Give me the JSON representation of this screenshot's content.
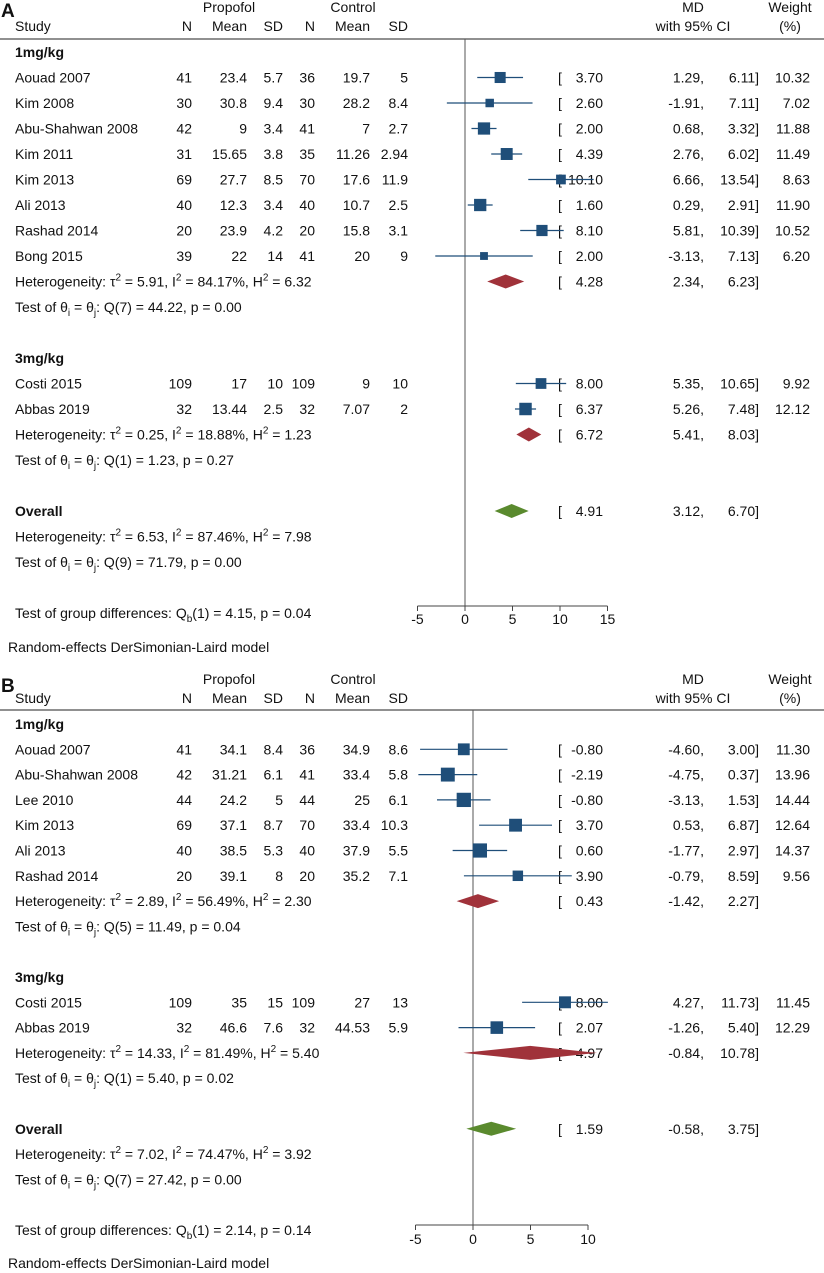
{
  "chart_data": [
    {
      "type": "forest",
      "panel": "A",
      "headers": {
        "study": "Study",
        "group1": "Propofol",
        "group2": "Control",
        "n": "N",
        "mean": "Mean",
        "sd": "SD",
        "effect_top": "MD",
        "effect_bottom": "with 95% CI",
        "weight_top": "Weight",
        "weight_bottom": "(%)"
      },
      "rows": [
        {
          "kind": "group",
          "label": "1mg/kg"
        },
        {
          "kind": "study",
          "label": "Aouad 2007",
          "n1": "41",
          "m1": "23.4",
          "sd1": "5.7",
          "n2": "36",
          "m2": "19.7",
          "sd2": "5",
          "md": 3.7,
          "lo": 1.29,
          "hi": 6.11,
          "md_t": "3.70",
          "lo_t": "1.29,",
          "hi_t": "6.11]",
          "weight": "10.32"
        },
        {
          "kind": "study",
          "label": "Kim 2008",
          "n1": "30",
          "m1": "30.8",
          "sd1": "9.4",
          "n2": "30",
          "m2": "28.2",
          "sd2": "8.4",
          "md": 2.6,
          "lo": -1.91,
          "hi": 7.11,
          "md_t": "2.60",
          "lo_t": "-1.91,",
          "hi_t": "7.11]",
          "weight": "7.02"
        },
        {
          "kind": "study",
          "label": "Abu-Shahwan 2008",
          "n1": "42",
          "m1": "9",
          "sd1": "3.4",
          "n2": "41",
          "m2": "7",
          "sd2": "2.7",
          "md": 2.0,
          "lo": 0.68,
          "hi": 3.32,
          "md_t": "2.00",
          "lo_t": "0.68,",
          "hi_t": "3.32]",
          "weight": "11.88"
        },
        {
          "kind": "study",
          "label": "Kim 2011",
          "n1": "31",
          "m1": "15.65",
          "sd1": "3.8",
          "n2": "35",
          "m2": "11.26",
          "sd2": "2.94",
          "md": 4.39,
          "lo": 2.76,
          "hi": 6.02,
          "md_t": "4.39",
          "lo_t": "2.76,",
          "hi_t": "6.02]",
          "weight": "11.49"
        },
        {
          "kind": "study",
          "label": "Kim 2013",
          "n1": "69",
          "m1": "27.7",
          "sd1": "8.5",
          "n2": "70",
          "m2": "17.6",
          "sd2": "11.9",
          "md": 10.1,
          "lo": 6.66,
          "hi": 13.54,
          "md_t": "10.10",
          "lo_t": "6.66,",
          "hi_t": "13.54]",
          "weight": "8.63"
        },
        {
          "kind": "study",
          "label": "Ali 2013",
          "n1": "40",
          "m1": "12.3",
          "sd1": "3.4",
          "n2": "40",
          "m2": "10.7",
          "sd2": "2.5",
          "md": 1.6,
          "lo": 0.29,
          "hi": 2.91,
          "md_t": "1.60",
          "lo_t": "0.29,",
          "hi_t": "2.91]",
          "weight": "11.90"
        },
        {
          "kind": "study",
          "label": "Rashad 2014",
          "n1": "20",
          "m1": "23.9",
          "sd1": "4.2",
          "n2": "20",
          "m2": "15.8",
          "sd2": "3.1",
          "md": 8.1,
          "lo": 5.81,
          "hi": 10.39,
          "md_t": "8.10",
          "lo_t": "5.81,",
          "hi_t": "10.39]",
          "weight": "10.52"
        },
        {
          "kind": "study",
          "label": "Bong 2015",
          "n1": "39",
          "m1": "22",
          "sd1": "14",
          "n2": "41",
          "m2": "20",
          "sd2": "9",
          "md": 2.0,
          "lo": -3.13,
          "hi": 7.13,
          "md_t": "2.00",
          "lo_t": "-3.13,",
          "hi_t": "7.13]",
          "weight": "6.20"
        },
        {
          "kind": "subtotal",
          "label": "Heterogeneity: τ² = 5.91, I² = 84.17%, H² = 6.32",
          "md": 4.28,
          "lo": 2.34,
          "hi": 6.23,
          "md_t": "4.28",
          "lo_t": "2.34,",
          "hi_t": "6.23]"
        },
        {
          "kind": "test",
          "label": "Test of θᵢ = θⱼ: Q(7) = 44.22, p = 0.00"
        },
        {
          "kind": "blank"
        },
        {
          "kind": "group",
          "label": "3mg/kg"
        },
        {
          "kind": "study",
          "label": "Costi 2015",
          "n1": "109",
          "m1": "17",
          "sd1": "10",
          "n2": "109",
          "m2": "9",
          "sd2": "10",
          "md": 8.0,
          "lo": 5.35,
          "hi": 10.65,
          "md_t": "8.00",
          "lo_t": "5.35,",
          "hi_t": "10.65]",
          "weight": "9.92"
        },
        {
          "kind": "study",
          "label": "Abbas 2019",
          "n1": "32",
          "m1": "13.44",
          "sd1": "2.5",
          "n2": "32",
          "m2": "7.07",
          "sd2": "2",
          "md": 6.37,
          "lo": 5.26,
          "hi": 7.48,
          "md_t": "6.37",
          "lo_t": "5.26,",
          "hi_t": "7.48]",
          "weight": "12.12"
        },
        {
          "kind": "subtotal",
          "label": "Heterogeneity: τ² = 0.25, I² = 18.88%, H² = 1.23",
          "md": 6.72,
          "lo": 5.41,
          "hi": 8.03,
          "md_t": "6.72",
          "lo_t": "5.41,",
          "hi_t": "8.03]"
        },
        {
          "kind": "test",
          "label": "Test of θᵢ = θⱼ: Q(1) = 1.23, p = 0.27"
        },
        {
          "kind": "blank"
        },
        {
          "kind": "overall",
          "label": "Overall",
          "md": 4.91,
          "lo": 3.12,
          "hi": 6.7,
          "md_t": "4.91",
          "lo_t": "3.12,",
          "hi_t": "6.70]"
        },
        {
          "kind": "test",
          "label": "Heterogeneity: τ² = 6.53, I² = 87.46%, H² = 7.98"
        },
        {
          "kind": "test",
          "label": "Test of θᵢ = θⱼ: Q(9) = 71.79, p = 0.00"
        },
        {
          "kind": "blank"
        },
        {
          "kind": "test",
          "label": "Test of group differences: Q_b(1) = 4.15, p = 0.04"
        }
      ],
      "x_ticks": [
        -5,
        0,
        5,
        10,
        15
      ],
      "xlim": [
        -5,
        15
      ],
      "model_note": "Random-effects DerSimonian-Laird model"
    },
    {
      "type": "forest",
      "panel": "B",
      "headers": {
        "study": "Study",
        "group1": "Propofol",
        "group2": "Control",
        "n": "N",
        "mean": "Mean",
        "sd": "SD",
        "effect_top": "MD",
        "effect_bottom": "with 95% CI",
        "weight_top": "Weight",
        "weight_bottom": "(%)"
      },
      "rows": [
        {
          "kind": "group",
          "label": "1mg/kg"
        },
        {
          "kind": "study",
          "label": "Aouad 2007",
          "n1": "41",
          "m1": "34.1",
          "sd1": "8.4",
          "n2": "36",
          "m2": "34.9",
          "sd2": "8.6",
          "md": -0.8,
          "lo": -4.6,
          "hi": 3.0,
          "md_t": "-0.80",
          "lo_t": "-4.60,",
          "hi_t": "3.00]",
          "weight": "11.30"
        },
        {
          "kind": "study",
          "label": "Abu-Shahwan 2008",
          "n1": "42",
          "m1": "31.21",
          "sd1": "6.1",
          "n2": "41",
          "m2": "33.4",
          "sd2": "5.8",
          "md": -2.19,
          "lo": -4.75,
          "hi": 0.37,
          "md_t": "-2.19",
          "lo_t": "-4.75,",
          "hi_t": "0.37]",
          "weight": "13.96"
        },
        {
          "kind": "study",
          "label": "Lee 2010",
          "n1": "44",
          "m1": "24.2",
          "sd1": "5",
          "n2": "44",
          "m2": "25",
          "sd2": "6.1",
          "md": -0.8,
          "lo": -3.13,
          "hi": 1.53,
          "md_t": "-0.80",
          "lo_t": "-3.13,",
          "hi_t": "1.53]",
          "weight": "14.44"
        },
        {
          "kind": "study",
          "label": "Kim 2013",
          "n1": "69",
          "m1": "37.1",
          "sd1": "8.7",
          "n2": "70",
          "m2": "33.4",
          "sd2": "10.3",
          "md": 3.7,
          "lo": 0.53,
          "hi": 6.87,
          "md_t": "3.70",
          "lo_t": "0.53,",
          "hi_t": "6.87]",
          "weight": "12.64"
        },
        {
          "kind": "study",
          "label": "Ali 2013",
          "n1": "40",
          "m1": "38.5",
          "sd1": "5.3",
          "n2": "40",
          "m2": "37.9",
          "sd2": "5.5",
          "md": 0.6,
          "lo": -1.77,
          "hi": 2.97,
          "md_t": "0.60",
          "lo_t": "-1.77,",
          "hi_t": "2.97]",
          "weight": "14.37"
        },
        {
          "kind": "study",
          "label": "Rashad 2014",
          "n1": "20",
          "m1": "39.1",
          "sd1": "8",
          "n2": "20",
          "m2": "35.2",
          "sd2": "7.1",
          "md": 3.9,
          "lo": -0.79,
          "hi": 8.59,
          "md_t": "3.90",
          "lo_t": "-0.79,",
          "hi_t": "8.59]",
          "weight": "9.56"
        },
        {
          "kind": "subtotal",
          "label": "Heterogeneity: τ² = 2.89, I² = 56.49%, H² = 2.30",
          "md": 0.43,
          "lo": -1.42,
          "hi": 2.27,
          "md_t": "0.43",
          "lo_t": "-1.42,",
          "hi_t": "2.27]"
        },
        {
          "kind": "test",
          "label": "Test of θᵢ = θⱼ: Q(5) = 11.49, p = 0.04"
        },
        {
          "kind": "blank"
        },
        {
          "kind": "group",
          "label": "3mg/kg"
        },
        {
          "kind": "study",
          "label": "Costi 2015",
          "n1": "109",
          "m1": "35",
          "sd1": "15",
          "n2": "109",
          "m2": "27",
          "sd2": "13",
          "md": 8.0,
          "lo": 4.27,
          "hi": 11.73,
          "md_t": "8.00",
          "lo_t": "4.27,",
          "hi_t": "11.73]",
          "weight": "11.45"
        },
        {
          "kind": "study",
          "label": "Abbas 2019",
          "n1": "32",
          "m1": "46.6",
          "sd1": "7.6",
          "n2": "32",
          "m2": "44.53",
          "sd2": "5.9",
          "md": 2.07,
          "lo": -1.26,
          "hi": 5.4,
          "md_t": "2.07",
          "lo_t": "-1.26,",
          "hi_t": "5.40]",
          "weight": "12.29"
        },
        {
          "kind": "subtotal",
          "label": "Heterogeneity: τ² = 14.33, I² = 81.49%, H² = 5.40",
          "md": 4.97,
          "lo": -0.84,
          "hi": 10.78,
          "md_t": "4.97",
          "lo_t": "-0.84,",
          "hi_t": "10.78]"
        },
        {
          "kind": "test",
          "label": "Test of θᵢ = θⱼ: Q(1) = 5.40, p = 0.02"
        },
        {
          "kind": "blank"
        },
        {
          "kind": "overall",
          "label": "Overall",
          "md": 1.59,
          "lo": -0.58,
          "hi": 3.75,
          "md_t": "1.59",
          "lo_t": "-0.58,",
          "hi_t": "3.75]"
        },
        {
          "kind": "test",
          "label": "Heterogeneity: τ² = 7.02, I² = 74.47%, H² = 3.92"
        },
        {
          "kind": "test",
          "label": "Test of θᵢ = θⱼ: Q(7) = 27.42, p = 0.00"
        },
        {
          "kind": "blank"
        },
        {
          "kind": "test",
          "label": "Test of group differences: Q_b(1) = 2.14, p = 0.14"
        }
      ],
      "x_ticks": [
        -5,
        0,
        5,
        10
      ],
      "xlim": [
        -5,
        10
      ],
      "model_note": "Random-effects DerSimonian-Laird model"
    }
  ],
  "colors": {
    "study_marker": "#1f4e79",
    "subgroup_diamond": "#a0323a",
    "overall_diamond": "#5a8a2e",
    "line": "#1f4e79",
    "axis": "#444444"
  }
}
